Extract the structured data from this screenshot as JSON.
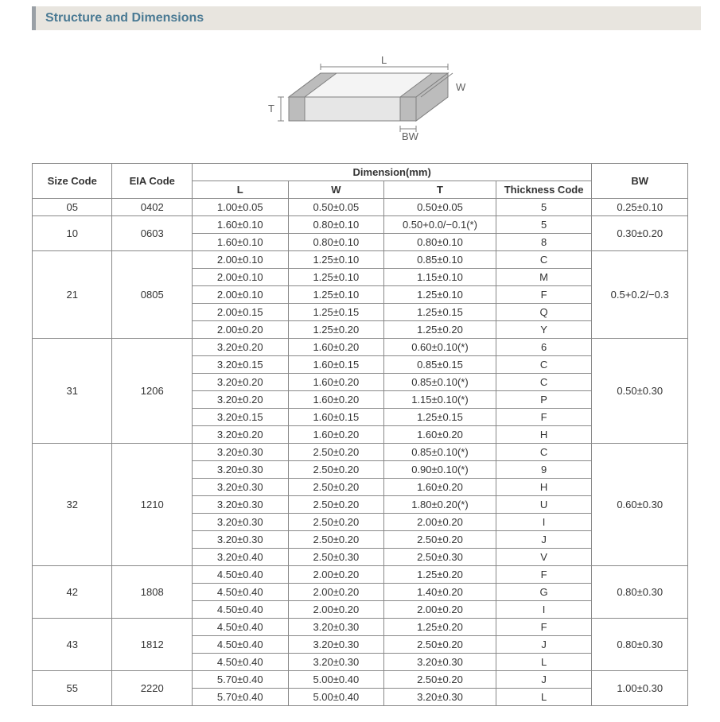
{
  "title": "Structure and Dimensions",
  "diagram": {
    "labels": {
      "L": "L",
      "W": "W",
      "T": "T",
      "BW": "BW"
    },
    "stroke": "#808080",
    "fill_top": "#f4f4f4",
    "fill_front": "#e6e6e6",
    "fill_side": "#d8d8d8",
    "band_color": "#bcbcbc",
    "label_color": "#606060"
  },
  "headers": {
    "size": "Size Code",
    "eia": "EIA Code",
    "dim": "Dimension(mm)",
    "L": "L",
    "W": "W",
    "T": "T",
    "TC": "Thickness  Code",
    "BW": "BW"
  },
  "groups": [
    {
      "size": "05",
      "eia": "0402",
      "bw": "0.25±0.10",
      "rows": [
        {
          "L": "1.00±0.05",
          "W": "0.50±0.05",
          "T": "0.50±0.05",
          "TC": "5"
        }
      ]
    },
    {
      "size": "10",
      "eia": "0603",
      "bw": "0.30±0.20",
      "rows": [
        {
          "L": "1.60±0.10",
          "W": "0.80±0.10",
          "T": "0.50+0.0/−0.1(*)",
          "TC": "5"
        },
        {
          "L": "1.60±0.10",
          "W": "0.80±0.10",
          "T": "0.80±0.10",
          "TC": "8"
        }
      ]
    },
    {
      "size": "21",
      "eia": "0805",
      "bw": "0.5+0.2/−0.3",
      "rows": [
        {
          "L": "2.00±0.10",
          "W": "1.25±0.10",
          "T": "0.85±0.10",
          "TC": "C"
        },
        {
          "L": "2.00±0.10",
          "W": "1.25±0.10",
          "T": "1.15±0.10",
          "TC": "M"
        },
        {
          "L": "2.00±0.10",
          "W": "1.25±0.10",
          "T": "1.25±0.10",
          "TC": "F"
        },
        {
          "L": "2.00±0.15",
          "W": "1.25±0.15",
          "T": "1.25±0.15",
          "TC": "Q"
        },
        {
          "L": "2.00±0.20",
          "W": "1.25±0.20",
          "T": "1.25±0.20",
          "TC": "Y"
        }
      ]
    },
    {
      "size": "31",
      "eia": "1206",
      "bw": "0.50±0.30",
      "rows": [
        {
          "L": "3.20±0.20",
          "W": "1.60±0.20",
          "T": "0.60±0.10(*)",
          "TC": "6"
        },
        {
          "L": "3.20±0.15",
          "W": "1.60±0.15",
          "T": "0.85±0.15",
          "TC": "C"
        },
        {
          "L": "3.20±0.20",
          "W": "1.60±0.20",
          "T": "0.85±0.10(*)",
          "TC": "C"
        },
        {
          "L": "3.20±0.20",
          "W": "1.60±0.20",
          "T": "1.15±0.10(*)",
          "TC": "P"
        },
        {
          "L": "3.20±0.15",
          "W": "1.60±0.15",
          "T": "1.25±0.15",
          "TC": "F"
        },
        {
          "L": "3.20±0.20",
          "W": "1.60±0.20",
          "T": "1.60±0.20",
          "TC": "H"
        }
      ]
    },
    {
      "size": "32",
      "eia": "1210",
      "bw": "0.60±0.30",
      "rows": [
        {
          "L": "3.20±0.30",
          "W": "2.50±0.20",
          "T": "0.85±0.10(*)",
          "TC": "C"
        },
        {
          "L": "3.20±0.30",
          "W": "2.50±0.20",
          "T": "0.90±0.10(*)",
          "TC": "9"
        },
        {
          "L": "3.20±0.30",
          "W": "2.50±0.20",
          "T": "1.60±0.20",
          "TC": "H"
        },
        {
          "L": "3.20±0.30",
          "W": "2.50±0.20",
          "T": "1.80±0.20(*)",
          "TC": "U"
        },
        {
          "L": "3.20±0.30",
          "W": "2.50±0.20",
          "T": "2.00±0.20",
          "TC": "I"
        },
        {
          "L": "3.20±0.30",
          "W": "2.50±0.20",
          "T": "2.50±0.20",
          "TC": "J"
        },
        {
          "L": "3.20±0.40",
          "W": "2.50±0.30",
          "T": "2.50±0.30",
          "TC": "V"
        }
      ]
    },
    {
      "size": "42",
      "eia": "1808",
      "bw": "0.80±0.30",
      "rows": [
        {
          "L": "4.50±0.40",
          "W": "2.00±0.20",
          "T": "1.25±0.20",
          "TC": "F"
        },
        {
          "L": "4.50±0.40",
          "W": "2.00±0.20",
          "T": "1.40±0.20",
          "TC": "G"
        },
        {
          "L": "4.50±0.40",
          "W": "2.00±0.20",
          "T": "2.00±0.20",
          "TC": "I"
        }
      ]
    },
    {
      "size": "43",
      "eia": "1812",
      "bw": "0.80±0.30",
      "rows": [
        {
          "L": "4.50±0.40",
          "W": "3.20±0.30",
          "T": "1.25±0.20",
          "TC": "F"
        },
        {
          "L": "4.50±0.40",
          "W": "3.20±0.30",
          "T": "2.50±0.20",
          "TC": "J"
        },
        {
          "L": "4.50±0.40",
          "W": "3.20±0.30",
          "T": "3.20±0.30",
          "TC": "L"
        }
      ]
    },
    {
      "size": "55",
      "eia": "2220",
      "bw": "1.00±0.30",
      "rows": [
        {
          "L": "5.70±0.40",
          "W": "5.00±0.40",
          "T": "2.50±0.20",
          "TC": "J"
        },
        {
          "L": "5.70±0.40",
          "W": "5.00±0.40",
          "T": "3.20±0.30",
          "TC": "L"
        }
      ]
    }
  ]
}
